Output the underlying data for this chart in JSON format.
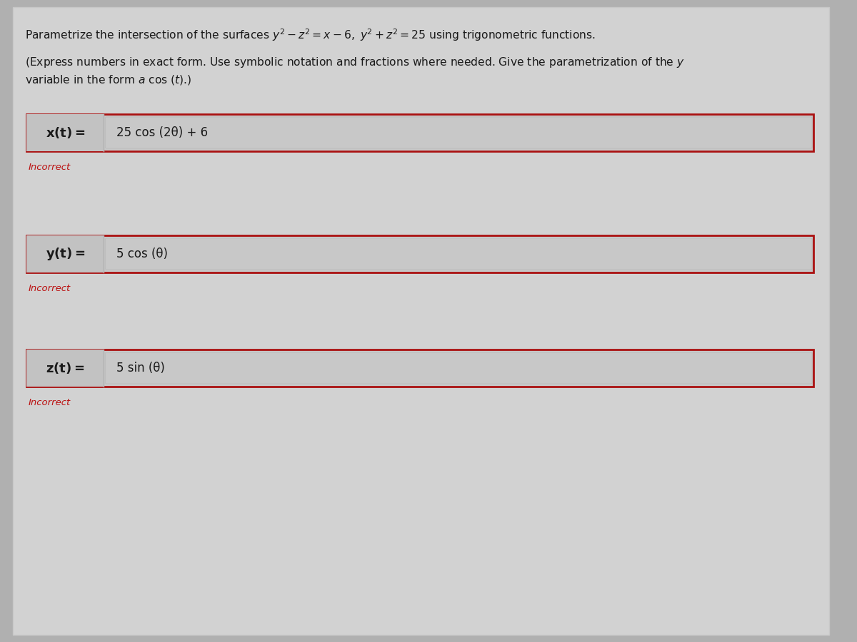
{
  "bg_color": "#b0b0b0",
  "panel_bg": "#d2d2d2",
  "panel_border_color": "#e0e0e0",
  "box_outer_bg": "#c8c8c8",
  "box_border_color": "#aa1111",
  "label_bg": "#c4c4c4",
  "input_bg": "#c4c4c4",
  "input_inner_bg": "#c0c0c0",
  "text_color": "#1a1a1a",
  "incorrect_color": "#bb1111",
  "title": "Parametrize the intersection of the surfaces $y^2 - z^2 = x - 6,\\ y^2 + z^2 = 25$ using trigonometric functions.",
  "subtitle_line1": "(Express numbers in exact form. Use symbolic notation and fractions where needed. Give the parametrization of the $y$",
  "subtitle_line2": "variable in the form $a$ cos ($t$).)",
  "rows": [
    {
      "label": "x(t) =",
      "value": "25 cos (2θ) + 6",
      "incorrect_label": "Incorrect"
    },
    {
      "label": "y(t) =",
      "value": "5 cos (θ)",
      "incorrect_label": "Incorrect"
    },
    {
      "label": "z(t) =",
      "value": "5 sin (θ)",
      "incorrect_label": "Incorrect"
    }
  ],
  "fig_width": 12.0,
  "fig_height": 9.0,
  "dpi": 100
}
